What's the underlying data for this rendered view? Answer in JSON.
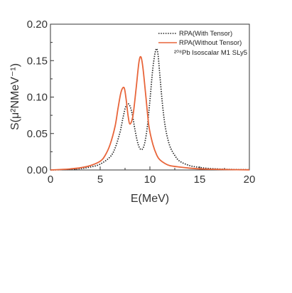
{
  "chart_data": {
    "type": "line",
    "xlabel": "E(MeV)",
    "ylabel": "S(μ²NMeV⁻¹)",
    "xlim": [
      0,
      20
    ],
    "ylim": [
      0,
      0.2
    ],
    "xticks": [
      "0",
      "5",
      "10",
      "15",
      "20"
    ],
    "yticks": [
      "0.00",
      "0.05",
      "0.10",
      "0.15",
      "0.20"
    ],
    "grid": false,
    "legend_position": "top-right",
    "annotation": "²⁰⁸Pb  Isoscalar M1    SLy5",
    "series": [
      {
        "name": "RPA(With Tensor)",
        "color": "#222222",
        "style": "dotted",
        "x": [
          0,
          1,
          2,
          3,
          4,
          5,
          6,
          6.5,
          7,
          7.3,
          7.6,
          7.9,
          8.2,
          8.5,
          8.8,
          9.1,
          9.4,
          9.7,
          10.0,
          10.3,
          10.6,
          10.8,
          11.0,
          11.3,
          11.6,
          12.0,
          12.5,
          13.0,
          14.0,
          15.0,
          16.0,
          18.0,
          20.0
        ],
        "y": [
          0.0,
          0.0003,
          0.0008,
          0.0018,
          0.004,
          0.008,
          0.018,
          0.03,
          0.052,
          0.072,
          0.088,
          0.09,
          0.078,
          0.055,
          0.036,
          0.028,
          0.033,
          0.055,
          0.095,
          0.14,
          0.165,
          0.16,
          0.13,
          0.085,
          0.055,
          0.033,
          0.02,
          0.012,
          0.006,
          0.0035,
          0.002,
          0.0008,
          0.0004
        ]
      },
      {
        "name": "RPA(Without Tensor)",
        "color": "#e8653a",
        "style": "solid",
        "x": [
          0,
          1,
          2,
          3,
          4,
          5,
          5.5,
          6.0,
          6.5,
          6.8,
          7.1,
          7.4,
          7.6,
          7.8,
          8.0,
          8.3,
          8.6,
          8.9,
          9.1,
          9.3,
          9.6,
          9.9,
          10.3,
          10.7,
          11.0,
          11.5,
          12.0,
          13.0,
          14.0,
          15.0,
          16.0,
          18.0,
          20.0
        ],
        "y": [
          0.0,
          0.0006,
          0.0015,
          0.003,
          0.006,
          0.012,
          0.02,
          0.035,
          0.06,
          0.085,
          0.107,
          0.113,
          0.098,
          0.075,
          0.063,
          0.075,
          0.11,
          0.148,
          0.155,
          0.14,
          0.1,
          0.06,
          0.035,
          0.02,
          0.014,
          0.009,
          0.006,
          0.004,
          0.0025,
          0.0015,
          0.001,
          0.0005,
          0.0002
        ]
      }
    ]
  }
}
